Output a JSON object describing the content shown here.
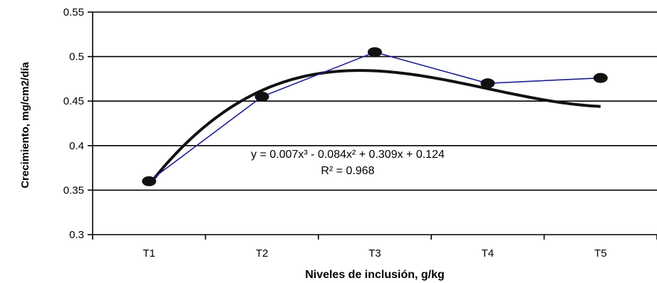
{
  "chart_data": {
    "type": "line",
    "title": "",
    "xlabel": "Niveles de inclusión, g/kg",
    "ylabel": "Crecimiento, mg/cm2/día",
    "categories": [
      "T1",
      "T2",
      "T3",
      "T4",
      "T5"
    ],
    "series": [
      {
        "values": [
          0.36,
          0.455,
          0.505,
          0.47,
          0.476
        ],
        "color": "#1f1f8f"
      }
    ],
    "trendline": {
      "type": "polynomial-3",
      "coefficients": [
        0.007,
        -0.084,
        0.309,
        0.124
      ],
      "color": "#111111"
    },
    "ylim": [
      0.3,
      0.55
    ],
    "yticks": [
      "0.3",
      "0.35",
      "0.4",
      "0.45",
      "0.5",
      "0.55"
    ],
    "grid": true,
    "legend": "none",
    "annotations": {
      "equation": "y = 0.007x³ - 0.084x² + 0.309x + 0.124",
      "r2": "R² = 0.968"
    }
  }
}
